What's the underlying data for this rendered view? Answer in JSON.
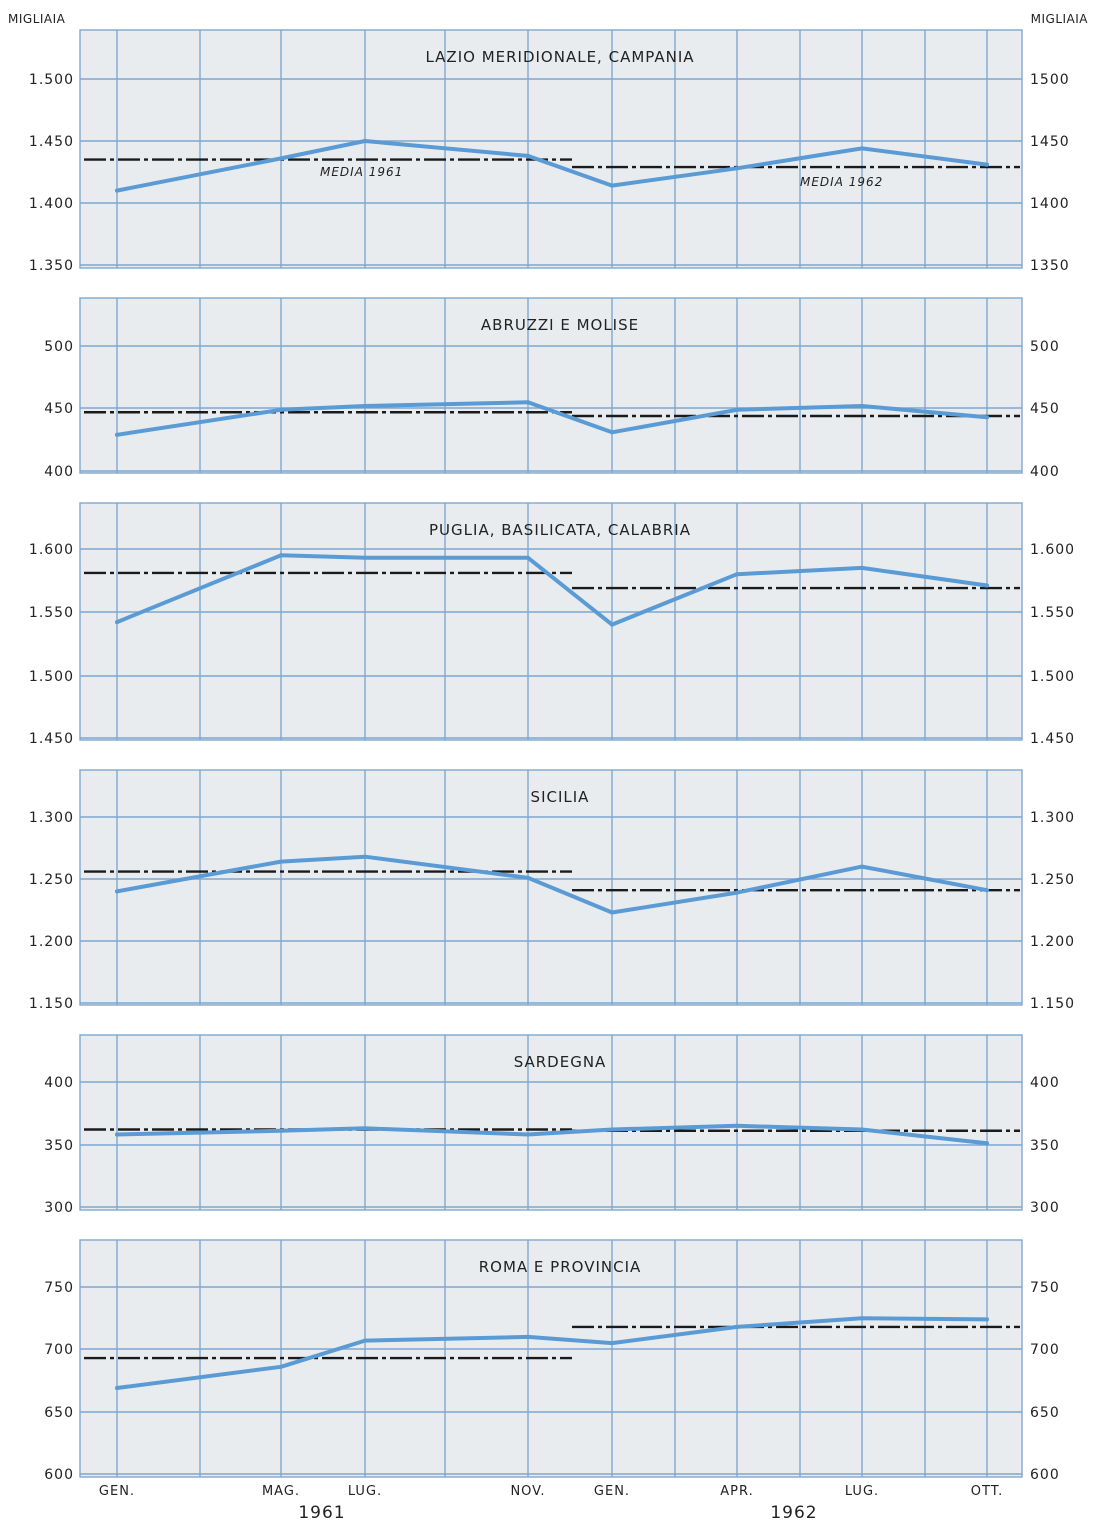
{
  "chart_data": {
    "type": "line",
    "unit_left": "MIGLIAIA",
    "unit_right": "MIGLIAIA",
    "x_labels": [
      "GEN.",
      "MAG.",
      "LUG.",
      "NOV.",
      "GEN.",
      "APR.",
      "LUG.",
      "OTT."
    ],
    "years": [
      "1961",
      "1962"
    ],
    "panels": [
      {
        "title": "LAZIO MERIDIONALE, CAMPANIA",
        "ylim": [
          1350,
          1500
        ],
        "ticks_left": [
          "1.500",
          "1.450",
          "1.400",
          "1.350"
        ],
        "ticks_right": [
          "1500",
          "1450",
          "1400",
          "1350"
        ],
        "values": [
          1410,
          1436,
          1450,
          1438,
          1414,
          1428,
          1444,
          1431
        ],
        "mean_1961": 1435,
        "mean_1962": 1429,
        "mean_labels": [
          "MEDIA 1961",
          "MEDIA 1962"
        ]
      },
      {
        "title": "ABRUZZI E MOLISE",
        "ylim": [
          400,
          500
        ],
        "ticks_left": [
          "500",
          "450",
          "400"
        ],
        "ticks_right": [
          "500",
          "450",
          "400"
        ],
        "values": [
          429,
          449,
          452,
          455,
          431,
          449,
          452,
          443
        ],
        "mean_1961": 447,
        "mean_1962": 444,
        "mean_labels": []
      },
      {
        "title": "PUGLIA, BASILICATA, CALABRIA",
        "ylim": [
          1450,
          1600
        ],
        "ticks_left": [
          "1.600",
          "1.550",
          "1.500",
          "1.450"
        ],
        "ticks_right": [
          "1.600",
          "1.550",
          "1.500",
          "1.450"
        ],
        "values": [
          1542,
          1595,
          1593,
          1593,
          1540,
          1580,
          1585,
          1571
        ],
        "mean_1961": 1581,
        "mean_1962": 1569,
        "mean_labels": []
      },
      {
        "title": "SICILIA",
        "ylim": [
          1150,
          1300
        ],
        "ticks_left": [
          "1.300",
          "1.250",
          "1.200",
          "1.150"
        ],
        "ticks_right": [
          "1.300",
          "1.250",
          "1.200",
          "1.150"
        ],
        "values": [
          1240,
          1264,
          1268,
          1251,
          1223,
          1239,
          1260,
          1241
        ],
        "mean_1961": 1256,
        "mean_1962": 1241,
        "mean_labels": []
      },
      {
        "title": "SARDEGNA",
        "ylim": [
          300,
          400
        ],
        "ticks_left": [
          "400",
          "350",
          "300"
        ],
        "ticks_right": [
          "400",
          "350",
          "300"
        ],
        "values": [
          358,
          361,
          363,
          358,
          362,
          365,
          362,
          351
        ],
        "mean_1961": 362,
        "mean_1962": 361,
        "mean_labels": []
      },
      {
        "title": "ROMA E PROVINCIA",
        "ylim": [
          600,
          750
        ],
        "ticks_left": [
          "750",
          "700",
          "650",
          "600"
        ],
        "ticks_right": [
          "750",
          "700",
          "650",
          "600"
        ],
        "values": [
          669,
          686,
          707,
          710,
          705,
          718,
          725,
          724
        ],
        "mean_1961": 693,
        "mean_1962": 718,
        "mean_labels": []
      }
    ],
    "grid": true,
    "colors": {
      "series": "#5b9bd5",
      "mean": "#1a1a1a",
      "grid": "#7fa7cf",
      "panel": "#e9ecef"
    }
  }
}
